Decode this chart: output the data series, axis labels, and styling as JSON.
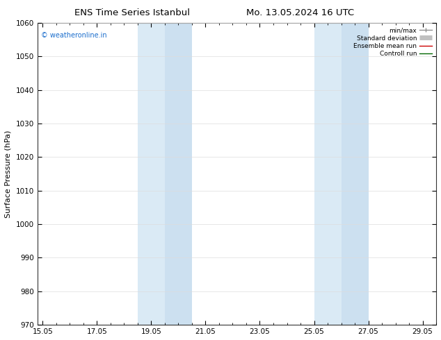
{
  "title_left": "ENS Time Series Istanbul",
  "title_right": "Mo. 13.05.2024 16 UTC",
  "xlabel_ticks": [
    "15.05",
    "17.05",
    "19.05",
    "21.05",
    "23.05",
    "25.05",
    "27.05",
    "29.05"
  ],
  "xlabel_tick_values": [
    0,
    2,
    4,
    6,
    8,
    10,
    12,
    14
  ],
  "ylabel": "Surface Pressure (hPa)",
  "ylim": [
    970,
    1060
  ],
  "xlim": [
    -0.2,
    14.2
  ],
  "yticks": [
    970,
    980,
    990,
    1000,
    1010,
    1020,
    1030,
    1040,
    1050,
    1060
  ],
  "shaded_regions": [
    {
      "xmin": 3.5,
      "xmax": 4.5,
      "color": "#daeaf5"
    },
    {
      "xmin": 4.5,
      "xmax": 5.5,
      "color": "#cce0f0"
    },
    {
      "xmin": 10.0,
      "xmax": 11.0,
      "color": "#daeaf5"
    },
    {
      "xmin": 11.0,
      "xmax": 12.0,
      "color": "#cce0f0"
    }
  ],
  "watermark": "© weatheronline.in",
  "watermark_color": "#1a6dcc",
  "legend_items": [
    {
      "label": "min/max",
      "color": "#909090",
      "linestyle": "-",
      "linewidth": 1.0
    },
    {
      "label": "Standard deviation",
      "color": "#c0c0c0",
      "linestyle": "-",
      "linewidth": 5
    },
    {
      "label": "Ensemble mean run",
      "color": "#cc0000",
      "linestyle": "-",
      "linewidth": 1.0
    },
    {
      "label": "Controll run",
      "color": "#006600",
      "linestyle": "-",
      "linewidth": 1.0
    }
  ],
  "background_color": "#ffffff",
  "plot_bg_color": "#ffffff",
  "grid_color": "#dddddd",
  "border_color": "#333333",
  "tick_label_fontsize": 7.5,
  "axis_label_fontsize": 8,
  "title_fontsize": 9.5
}
